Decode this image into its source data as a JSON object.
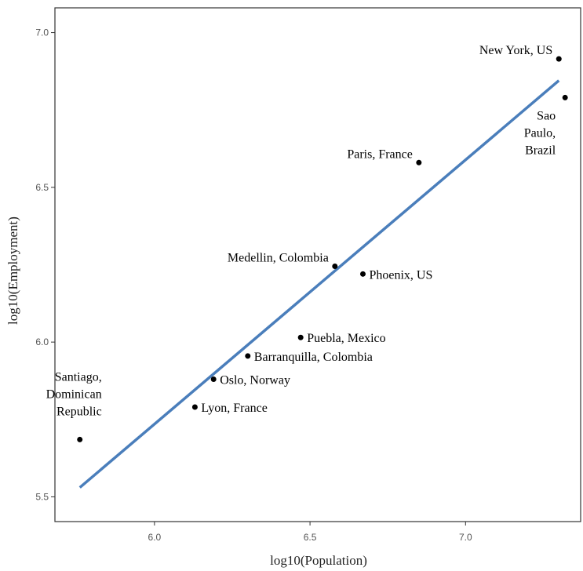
{
  "chart_data": {
    "type": "scatter",
    "xlabel": "log10(Population)",
    "ylabel": "log10(Employment)",
    "xlim": [
      5.68,
      7.37
    ],
    "ylim": [
      5.42,
      7.08
    ],
    "x_ticks": [
      "6.0",
      "6.5",
      "7.0"
    ],
    "y_ticks": [
      "5.5",
      "6.0",
      "6.5",
      "7.0"
    ],
    "grid": false,
    "points": [
      {
        "x": 5.76,
        "y": 5.685,
        "label": [
          "Santiago,",
          "Dominican",
          "Republic"
        ],
        "anchor": "end"
      },
      {
        "x": 6.13,
        "y": 5.79,
        "label": [
          "Lyon, France"
        ],
        "anchor": "start"
      },
      {
        "x": 6.19,
        "y": 5.88,
        "label": [
          "Oslo, Norway"
        ],
        "anchor": "start"
      },
      {
        "x": 6.3,
        "y": 5.955,
        "label": [
          "Barranquilla, Colombia"
        ],
        "anchor": "start"
      },
      {
        "x": 6.47,
        "y": 6.015,
        "label": [
          "Puebla, Mexico"
        ],
        "anchor": "start"
      },
      {
        "x": 6.58,
        "y": 6.245,
        "label": [
          "Medellin, Colombia"
        ],
        "anchor": "end"
      },
      {
        "x": 6.67,
        "y": 6.22,
        "label": [
          "Phoenix, US"
        ],
        "anchor": "start"
      },
      {
        "x": 6.85,
        "y": 6.58,
        "label": [
          "Paris, France"
        ],
        "anchor": "end"
      },
      {
        "x": 7.3,
        "y": 6.915,
        "label": [
          "New York, US"
        ],
        "anchor": "end"
      },
      {
        "x": 7.32,
        "y": 6.79,
        "label": [
          "Sao",
          "Paulo,",
          "Brazil"
        ],
        "anchor": "end"
      }
    ],
    "fit_line": {
      "x": [
        5.76,
        7.3
      ],
      "y": [
        5.53,
        6.845
      ],
      "color": "#4a7ebb"
    },
    "point_color": "#000000"
  }
}
